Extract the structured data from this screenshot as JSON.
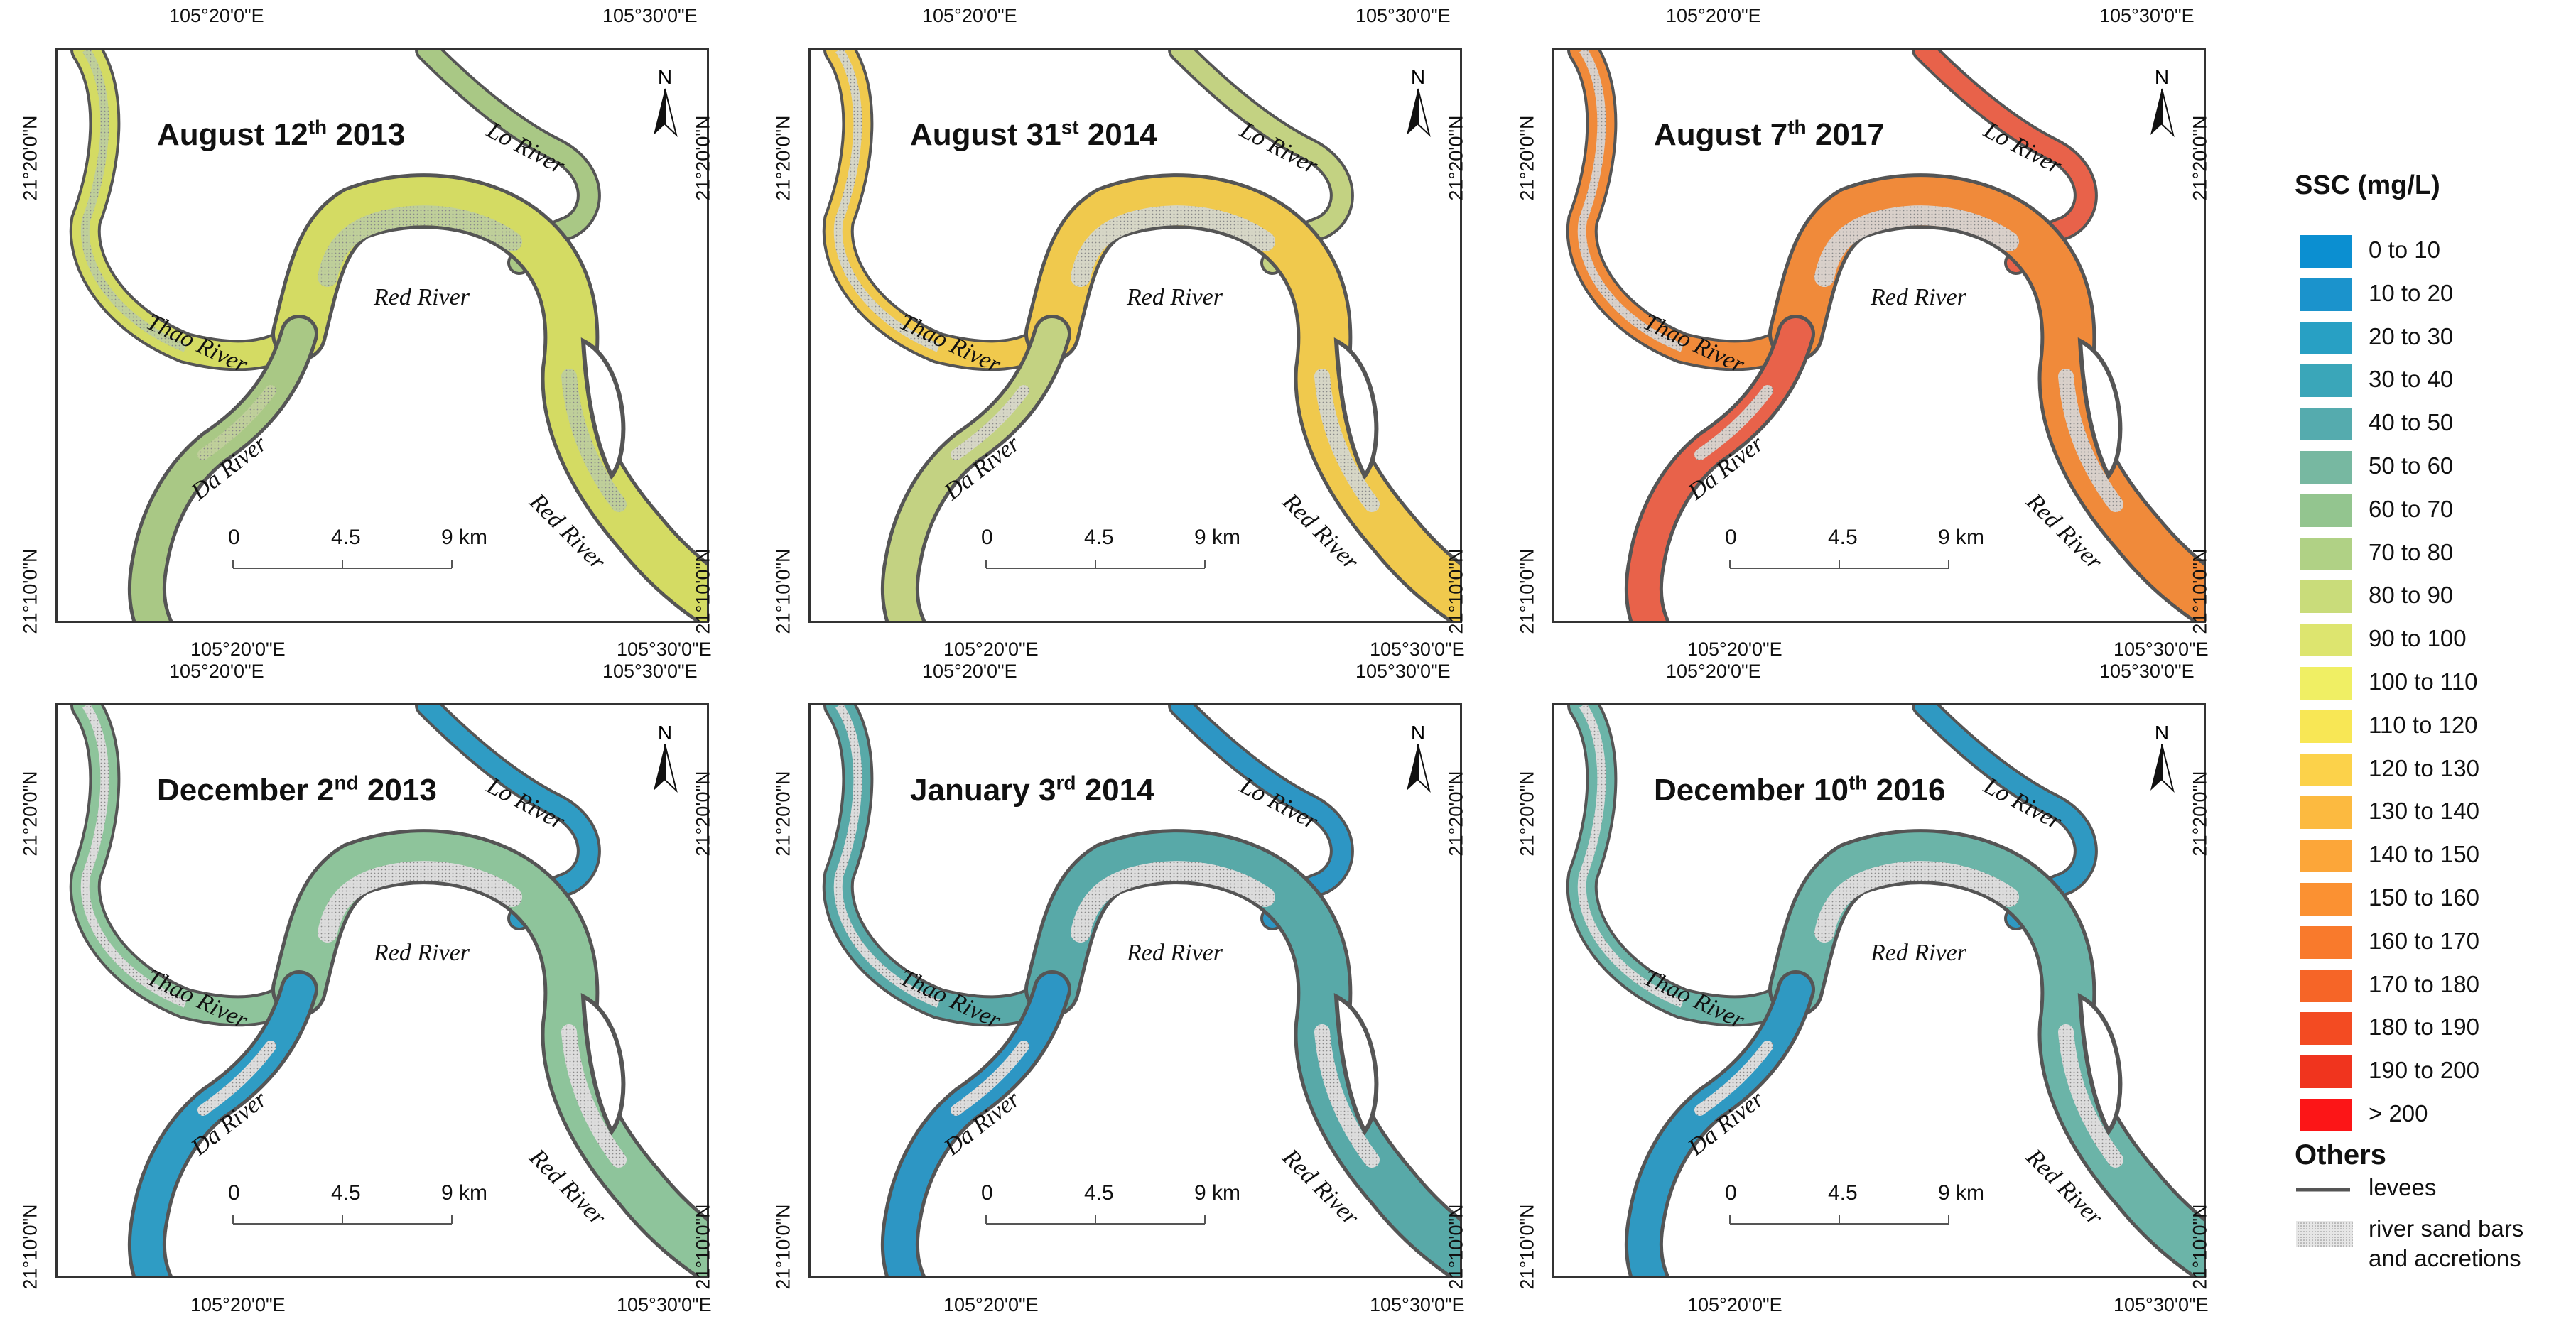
{
  "panels": [
    {
      "id": "p1",
      "date_main": "August 12",
      "date_sup": "th",
      "date_year": " 2013",
      "fill": "#d4db63",
      "fill2": "#a9c885",
      "bar": "#bfcf9a"
    },
    {
      "id": "p2",
      "date_main": "August 31",
      "date_sup": "st",
      "date_year": " 2014",
      "fill": "#f0c94d",
      "fill2": "#c3d282",
      "bar": "#d6d6c6"
    },
    {
      "id": "p3",
      "date_main": "August 7",
      "date_sup": "th",
      "date_year": " 2017",
      "fill": "#f08a3a",
      "fill2": "#e8624a",
      "bar": "#d9d0ca"
    },
    {
      "id": "p4",
      "date_main": "December 2",
      "date_sup": "nd",
      "date_year": " 2013",
      "fill": "#8ec49b",
      "fill2": "#2f9cc4",
      "bar": "#dcdcdc"
    },
    {
      "id": "p5",
      "date_main": "January 3",
      "date_sup": "rd",
      "date_year": " 2014",
      "fill": "#58a9a8",
      "fill2": "#2d96c4",
      "bar": "#dcdcdc"
    },
    {
      "id": "p6",
      "date_main": "December 10",
      "date_sup": "th",
      "date_year": " 2016",
      "fill": "#6bb4a8",
      "fill2": "#2f99c2",
      "bar": "#dcdcdc"
    }
  ],
  "axes": {
    "lon_left": "105°20'0\"E",
    "lon_right": "105°30'0\"E",
    "lat_top": "21°20'0\"N",
    "lat_bottom": "21°10'0\"N"
  },
  "rivers": {
    "lo": "Lo River",
    "thao": "Thao River",
    "red": "Red River",
    "da": "Da River"
  },
  "north_label": "N",
  "scale": {
    "a": "0",
    "b": "4.5",
    "c": "9 km"
  },
  "legend": {
    "title": "SSC (mg/L)",
    "items": [
      {
        "label": "0 to 10",
        "color": "#0b8fd1"
      },
      {
        "label": "10 to 20",
        "color": "#1b93cc"
      },
      {
        "label": "20 to 30",
        "color": "#28a0c4"
      },
      {
        "label": "30 to 40",
        "color": "#3aa6b9"
      },
      {
        "label": "40 to 50",
        "color": "#55abae"
      },
      {
        "label": "50 to 60",
        "color": "#77b8a1"
      },
      {
        "label": "60 to 70",
        "color": "#93c58f"
      },
      {
        "label": "70 to 80",
        "color": "#b0d185"
      },
      {
        "label": "80 to 90",
        "color": "#c9dc7a"
      },
      {
        "label": "90 to 100",
        "color": "#dde56f"
      },
      {
        "label": "100 to 110",
        "color": "#f0ef64"
      },
      {
        "label": "110 to 120",
        "color": "#f8e755"
      },
      {
        "label": "120 to 130",
        "color": "#fcd24a"
      },
      {
        "label": "130 to 140",
        "color": "#fcba40"
      },
      {
        "label": "140 to 150",
        "color": "#fca639"
      },
      {
        "label": "150 to 160",
        "color": "#fb9132"
      },
      {
        "label": "160 to 170",
        "color": "#f97a2c"
      },
      {
        "label": "170 to 180",
        "color": "#f66527"
      },
      {
        "label": "180 to 190",
        "color": "#f34b22"
      },
      {
        "label": "190 to 200",
        "color": "#f0341e"
      },
      {
        "label": "> 200",
        "color": "#fc1517"
      }
    ],
    "others_title": "Others",
    "levees": "levees",
    "sandbars_1": "river sand bars",
    "sandbars_2": "and accretions"
  }
}
